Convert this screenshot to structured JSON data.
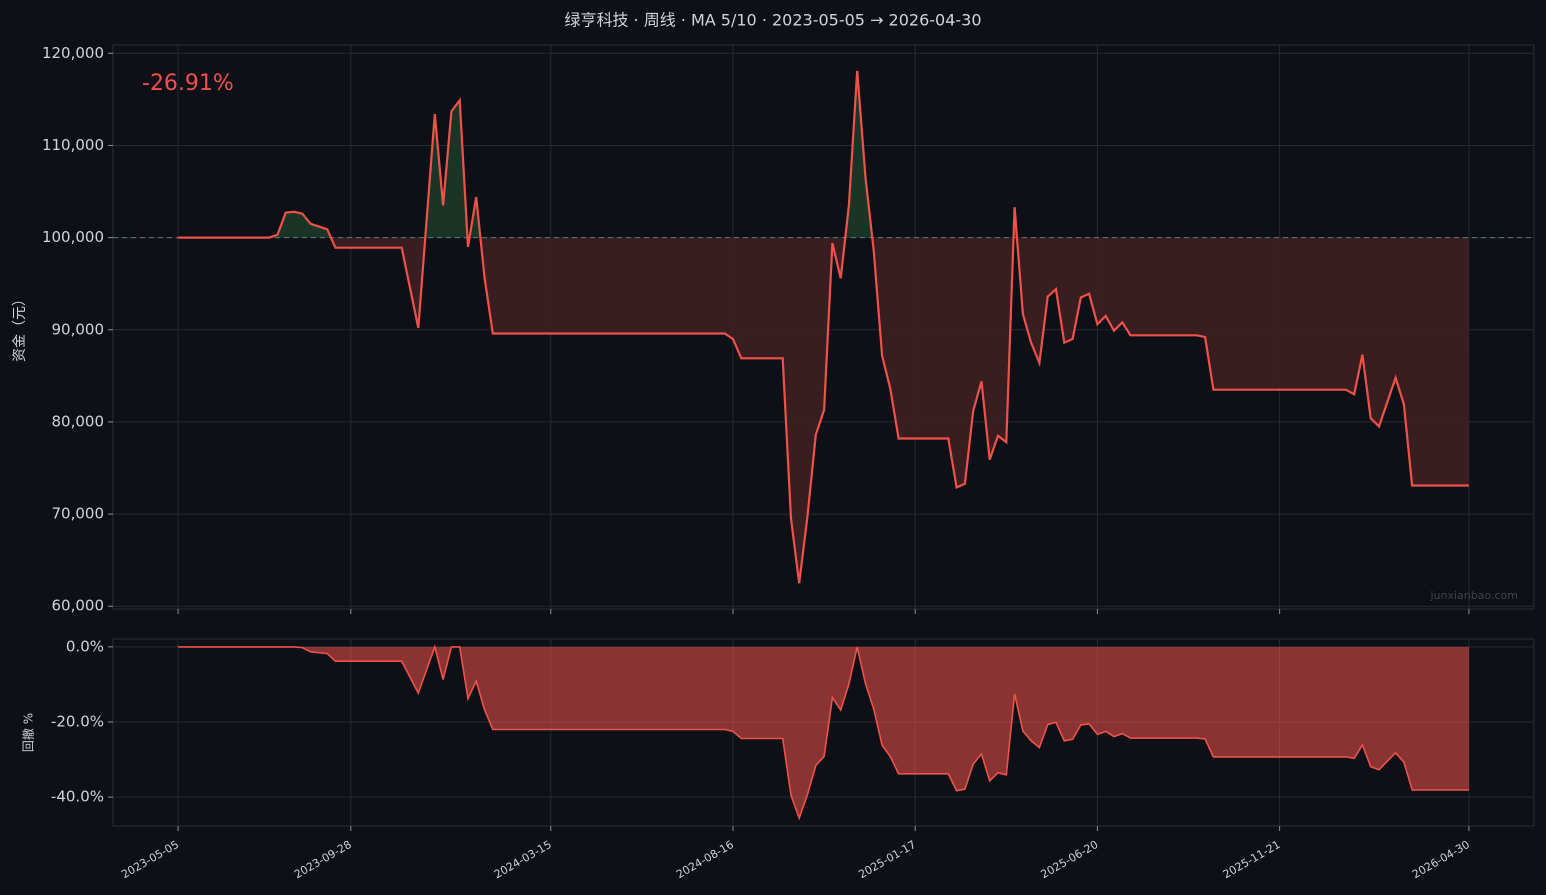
{
  "chart_data": [
    {
      "type": "line",
      "title": "绿亨科技 · 周线 · MA 5/10 · 2023-05-05 → 2026-04-30",
      "ylabel": "资金（元）",
      "annotation": "-26.91%",
      "watermark": "junxianbao.com",
      "color": "#f0524a",
      "baseline": 100000,
      "grid": true,
      "x": [
        "2023-05-05",
        "2023-07-21",
        "2023-07-28",
        "2023-08-04",
        "2023-08-11",
        "2023-08-18",
        "2023-08-25",
        "2023-09-08",
        "2023-09-15",
        "2023-11-10",
        "2023-11-24",
        "2023-12-08",
        "2023-12-15",
        "2023-12-22",
        "2023-12-29",
        "2024-01-05",
        "2024-01-12",
        "2024-01-19",
        "2024-01-26",
        "2024-08-09",
        "2024-08-16",
        "2024-08-23",
        "2024-09-27",
        "2024-10-04",
        "2024-10-11",
        "2024-10-18",
        "2024-10-25",
        "2024-11-01",
        "2024-11-08",
        "2024-11-15",
        "2024-11-22",
        "2024-11-29",
        "2024-12-06",
        "2024-12-13",
        "2024-12-20",
        "2024-12-27",
        "2025-01-03",
        "2025-02-14",
        "2025-02-21",
        "2025-02-28",
        "2025-03-07",
        "2025-03-14",
        "2025-03-21",
        "2025-03-28",
        "2025-04-04",
        "2025-04-11",
        "2025-04-18",
        "2025-04-25",
        "2025-05-02",
        "2025-05-09",
        "2025-05-16",
        "2025-05-23",
        "2025-05-30",
        "2025-06-06",
        "2025-06-13",
        "2025-06-20",
        "2025-06-27",
        "2025-07-04",
        "2025-07-11",
        "2025-07-18",
        "2025-09-12",
        "2025-09-19",
        "2025-09-26",
        "2026-01-16",
        "2026-01-23",
        "2026-01-30",
        "2026-02-06",
        "2026-02-13",
        "2026-02-27",
        "2026-03-06",
        "2026-03-13",
        "2026-04-30"
      ],
      "values": [
        100000,
        100000,
        100300,
        102700,
        102800,
        102600,
        101500,
        100900,
        98900,
        98900,
        90200,
        113400,
        103500,
        113700,
        114900,
        99000,
        104400,
        95700,
        89600,
        89600,
        89000,
        86900,
        86900,
        69500,
        62500,
        69800,
        78600,
        81300,
        99400,
        95600,
        103500,
        118100,
        106500,
        98500,
        87200,
        83600,
        78200,
        78200,
        72900,
        73300,
        81200,
        84400,
        75900,
        78500,
        77800,
        103300,
        91700,
        88600,
        86400,
        93600,
        94400,
        88600,
        89000,
        93500,
        93900,
        90600,
        91500,
        89900,
        90800,
        89400,
        89400,
        89200,
        83500,
        83500,
        83000,
        87300,
        80400,
        79500,
        84800,
        81900,
        73100,
        73100
      ],
      "xlim": [
        "2023-03-11",
        "2026-06-24"
      ],
      "ylim": [
        59700,
        120900
      ],
      "yticks": [
        {
          "value": 60000,
          "label": "60,000"
        },
        {
          "value": 70000,
          "label": "70,000"
        },
        {
          "value": 80000,
          "label": "80,000"
        },
        {
          "value": 90000,
          "label": "90,000"
        },
        {
          "value": 100000,
          "label": "100,000"
        },
        {
          "value": 110000,
          "label": "110,000"
        },
        {
          "value": 120000,
          "label": "120,000"
        }
      ]
    },
    {
      "type": "area",
      "ylabel": "回撤 %",
      "color": "#f0524a",
      "grid": true,
      "x": [
        "2023-05-05",
        "2023-07-21",
        "2023-07-28",
        "2023-08-04",
        "2023-08-11",
        "2023-08-18",
        "2023-08-25",
        "2023-09-08",
        "2023-09-15",
        "2023-11-10",
        "2023-11-24",
        "2023-12-08",
        "2023-12-15",
        "2023-12-22",
        "2023-12-29",
        "2024-01-05",
        "2024-01-12",
        "2024-01-19",
        "2024-01-26",
        "2024-08-09",
        "2024-08-16",
        "2024-08-23",
        "2024-09-27",
        "2024-10-04",
        "2024-10-11",
        "2024-10-18",
        "2024-10-25",
        "2024-11-01",
        "2024-11-08",
        "2024-11-15",
        "2024-11-22",
        "2024-11-29",
        "2024-12-06",
        "2024-12-13",
        "2024-12-20",
        "2024-12-27",
        "2025-01-03",
        "2025-02-14",
        "2025-02-21",
        "2025-02-28",
        "2025-03-07",
        "2025-03-14",
        "2025-03-21",
        "2025-03-28",
        "2025-04-04",
        "2025-04-11",
        "2025-04-18",
        "2025-04-25",
        "2025-05-02",
        "2025-05-09",
        "2025-05-16",
        "2025-05-23",
        "2025-05-30",
        "2025-06-06",
        "2025-06-13",
        "2025-06-20",
        "2025-06-27",
        "2025-07-04",
        "2025-07-11",
        "2025-07-18",
        "2025-09-12",
        "2025-09-19",
        "2025-09-26",
        "2026-01-16",
        "2026-01-23",
        "2026-01-30",
        "2026-02-06",
        "2026-02-13",
        "2026-02-27",
        "2026-03-06",
        "2026-03-13",
        "2026-04-30"
      ],
      "values": [
        0,
        0,
        0,
        0,
        0,
        -0.2,
        -1.3,
        -1.8,
        -3.8,
        -3.8,
        -12.3,
        0,
        -8.7,
        0,
        0,
        -13.8,
        -9.1,
        -16.7,
        -22.0,
        -22.0,
        -22.5,
        -24.4,
        -24.4,
        -39.5,
        -45.6,
        -39.3,
        -31.6,
        -29.2,
        -13.5,
        -16.8,
        -9.9,
        0,
        -9.8,
        -16.6,
        -26.2,
        -29.2,
        -33.8,
        -33.8,
        -38.3,
        -37.9,
        -31.2,
        -28.5,
        -35.7,
        -33.5,
        -34.1,
        -12.5,
        -22.4,
        -25.0,
        -26.8,
        -20.7,
        -20.1,
        -25.0,
        -24.6,
        -20.8,
        -20.5,
        -23.3,
        -22.5,
        -23.9,
        -23.1,
        -24.3,
        -24.3,
        -24.5,
        -29.3,
        -29.3,
        -29.7,
        -26.1,
        -31.9,
        -32.7,
        -28.2,
        -30.7,
        -38.1,
        -38.1
      ],
      "xlim": [
        "2023-03-11",
        "2026-06-24"
      ],
      "ylim": [
        -47.7,
        2.1
      ],
      "yticks": [
        {
          "value": -40,
          "label": "-40.0%"
        },
        {
          "value": -20,
          "label": "-20.0%"
        },
        {
          "value": 0,
          "label": "0.0%"
        }
      ],
      "xticks": [
        "2023-05-05",
        "2023-09-28",
        "2024-03-15",
        "2024-08-16",
        "2025-01-17",
        "2025-06-20",
        "2025-11-21",
        "2026-04-30"
      ]
    }
  ]
}
